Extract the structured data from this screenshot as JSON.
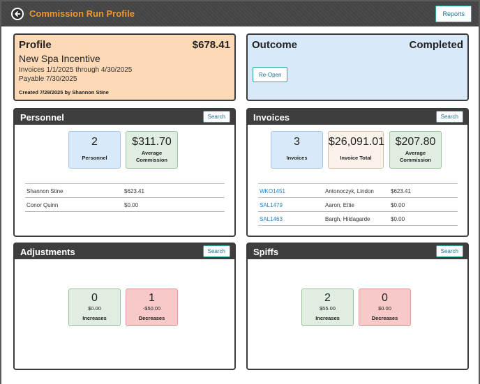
{
  "header": {
    "title": "Commission Run Profile",
    "reports_label": "Reports"
  },
  "profile": {
    "title": "Profile",
    "amount": "$678.41",
    "name": "New Spa Incentive",
    "invoices_range": "Invoices 1/1/2025 through 4/30/2025",
    "payable": "Payable 7/30/2025",
    "created": "Created 7/29/2025 by Shannon Stine"
  },
  "outcome": {
    "title": "Outcome",
    "status": "Completed",
    "reopen_label": "Re-Open"
  },
  "personnel": {
    "title": "Personnel",
    "search_label": "Search",
    "count_value": "2",
    "count_label": "Personnel",
    "avg_value": "$311.70",
    "avg_label": "Average Commission",
    "rows": [
      {
        "name": "Shannon Stine",
        "amount": "$623.41"
      },
      {
        "name": "Conor Quinn",
        "amount": "$0.00"
      }
    ]
  },
  "invoices": {
    "title": "Invoices",
    "search_label": "Search",
    "count_value": "3",
    "count_label": "Invoices",
    "total_value": "$26,091.01",
    "total_label": "Invoice Total",
    "avg_value": "$207.80",
    "avg_label": "Average Commission",
    "rows": [
      {
        "id": "WKO1451",
        "name": "Antonoczyk, Lindon",
        "amount": "$623.41"
      },
      {
        "id": "SAL1479",
        "name": "Aaron, Ettie",
        "amount": "$0.00"
      },
      {
        "id": "SAL1463",
        "name": "Bargh, Hildagarde",
        "amount": "$0.00"
      }
    ]
  },
  "adjustments": {
    "title": "Adjustments",
    "search_label": "Search",
    "increases_count": "0",
    "increases_amount": "$0.00",
    "increases_label": "Increases",
    "decreases_count": "1",
    "decreases_amount": "-$50.00",
    "decreases_label": "Decreases"
  },
  "spiffs": {
    "title": "Spiffs",
    "search_label": "Search",
    "increases_count": "2",
    "increases_amount": "$55.00",
    "increases_label": "Increases",
    "decreases_count": "0",
    "decreases_amount": "$0.00",
    "decreases_label": "Decreases"
  },
  "colors": {
    "accent_orange": "#f0962a",
    "link_blue": "#1f7fc9",
    "button_border": "#2aa89a"
  }
}
